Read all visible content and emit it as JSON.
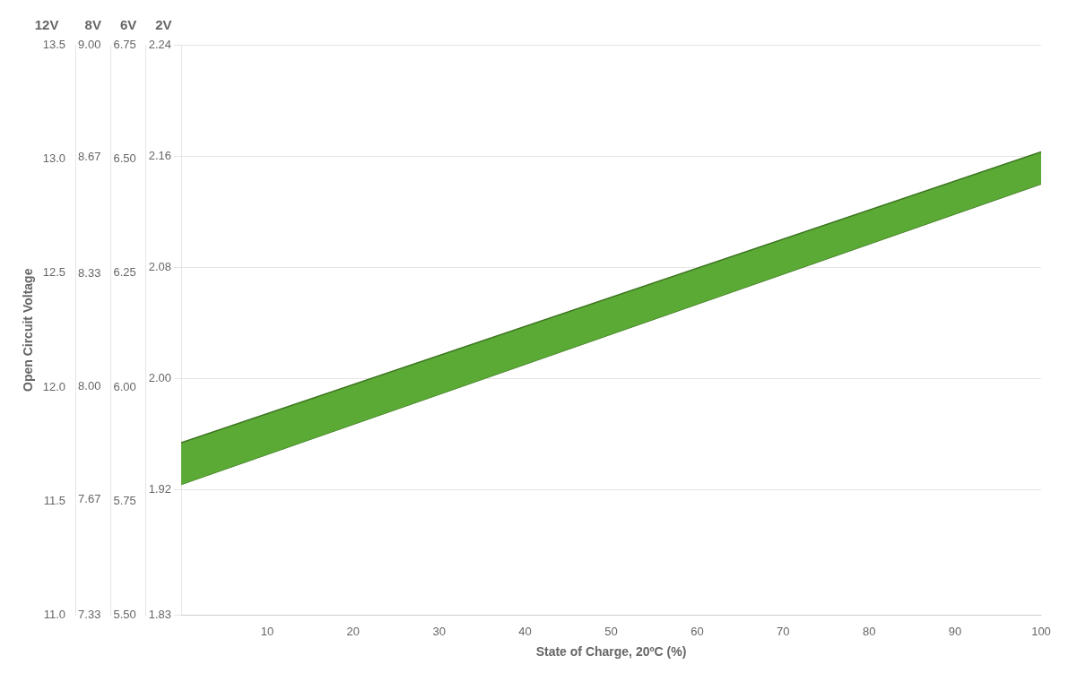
{
  "chart_data": {
    "type": "band",
    "xlabel": "State of Charge, 20ºC (%)",
    "ylabel": "Open Circuit Voltage",
    "x": [
      0,
      100
    ],
    "series": [
      {
        "values": [
          1.954,
          2.163
        ],
        "color": "#3d7520"
      },
      {
        "values": [
          1.924,
          2.14
        ],
        "color": "#3d7520"
      }
    ],
    "color": "#5aaa35",
    "xlim": [
      0,
      100
    ],
    "xticks": [
      10,
      20,
      30,
      40,
      50,
      60,
      70,
      80,
      90,
      100
    ],
    "ylim": [
      1.83,
      2.24
    ],
    "yticks": [
      1.83,
      1.92,
      {
        "value": 2.0,
        "label": "2.00"
      },
      2.08,
      2.16,
      2.24
    ],
    "yheader": "2V",
    "extra_axes": [
      {
        "header": "12V",
        "lim": [
          11.0,
          13.5
        ],
        "ticks": [
          {
            "value": 11.0,
            "label": "11.0"
          },
          11.5,
          {
            "value": 12.0,
            "label": "12.0"
          },
          12.5,
          {
            "value": 13.0,
            "label": "13.0"
          },
          13.5
        ]
      },
      {
        "header": "8V",
        "lim": [
          7.33,
          9.0
        ],
        "ticks": [
          7.33,
          7.67,
          {
            "value": 8.0,
            "label": "8.00"
          },
          8.33,
          8.67,
          {
            "value": 9.0,
            "label": "9.00"
          }
        ]
      },
      {
        "header": "6V",
        "lim": [
          5.5,
          6.75
        ],
        "ticks": [
          {
            "value": 5.5,
            "label": "5.50"
          },
          5.75,
          {
            "value": 6.0,
            "label": "6.00"
          },
          6.25,
          {
            "value": 6.5,
            "label": "6.50"
          },
          6.75
        ]
      }
    ],
    "grid": "y"
  }
}
